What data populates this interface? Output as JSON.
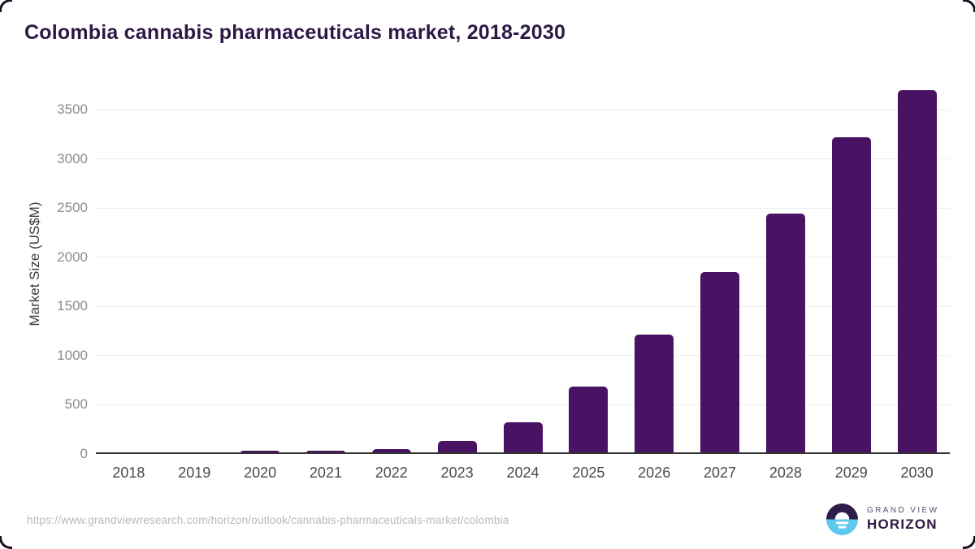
{
  "title": "Colombia cannabis pharmaceuticals market, 2018-2030",
  "source_url": "https://www.grandviewresearch.com/horizon/outlook/cannabis-pharmaceuticals-market/colombia",
  "logo": {
    "line1": "GRAND VIEW",
    "line2": "HORIZON"
  },
  "colors": {
    "bar": "#4a1263",
    "title": "#2d1846",
    "axis_line": "#333333",
    "gridline": "#ececec",
    "y_tick_label": "#8c8c8c",
    "x_tick_label": "#4a4a4a",
    "footer_text": "#b9b9b9",
    "logo_dark": "#2e1c49",
    "logo_blue": "#5ec8f0"
  },
  "chart_data": {
    "type": "bar",
    "title": "Colombia cannabis pharmaceuticals market, 2018-2030",
    "categories": [
      "2018",
      "2019",
      "2020",
      "2021",
      "2022",
      "2023",
      "2024",
      "2025",
      "2026",
      "2027",
      "2028",
      "2029",
      "2030"
    ],
    "values": [
      1,
      4,
      28,
      22,
      45,
      122,
      313,
      674,
      1203,
      1840,
      2440,
      3214,
      3694
    ],
    "xlabel": "",
    "ylabel": "Market Size (US$M)",
    "yticks": [
      0,
      500,
      1000,
      1500,
      2000,
      2500,
      3000,
      3500
    ],
    "ylim": [
      0,
      3700
    ],
    "grid": "horizontal",
    "legend": "none",
    "bar_color": "#4a1263"
  }
}
